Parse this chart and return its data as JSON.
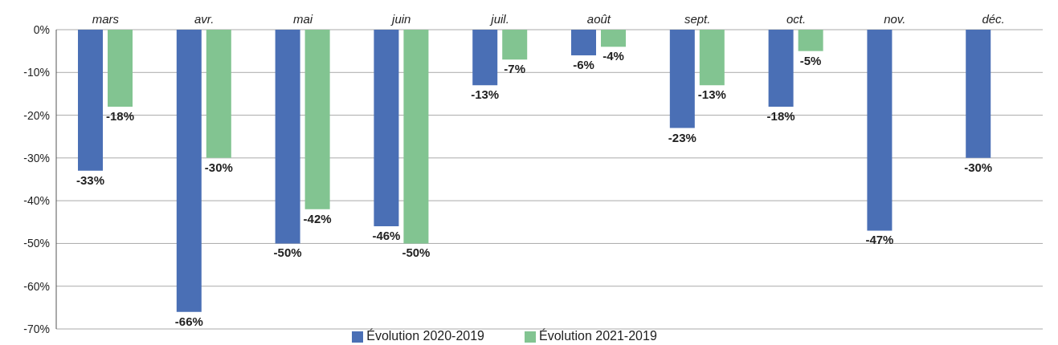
{
  "chart_data": {
    "type": "bar",
    "categories": [
      "mars",
      "avr.",
      "mai",
      "juin",
      "juil.",
      "août",
      "sept.",
      "oct.",
      "nov.",
      "déc."
    ],
    "series": [
      {
        "name": "Évolution 2020-2019",
        "color": "#4a6fb5",
        "values": [
          -33,
          -66,
          -50,
          -46,
          -13,
          -6,
          -23,
          -18,
          -47,
          -30
        ],
        "value_labels": [
          "-33%",
          "-66%",
          "-50%",
          "-46%",
          "-13%",
          "-6%",
          "-23%",
          "-18%",
          "-47%",
          "-30%"
        ]
      },
      {
        "name": "Évolution 2021-2019",
        "color": "#82c491",
        "values": [
          -18,
          -30,
          -42,
          -50,
          -7,
          -4,
          -13,
          -5,
          null,
          null
        ],
        "value_labels": [
          "-18%",
          "-30%",
          "-42%",
          "-50%",
          "-7%",
          "-4%",
          "-13%",
          "-5%",
          null,
          null
        ]
      }
    ],
    "ylim": [
      -70,
      0
    ],
    "yticks": [
      {
        "value": 0,
        "label": "0%"
      },
      {
        "value": -10,
        "label": "-10%"
      },
      {
        "value": -20,
        "label": "-20%"
      },
      {
        "value": -30,
        "label": "-30%"
      },
      {
        "value": -40,
        "label": "-40%"
      },
      {
        "value": -50,
        "label": "-50%"
      },
      {
        "value": -60,
        "label": "-60%"
      },
      {
        "value": -70,
        "label": "-70%"
      }
    ],
    "grid": "y",
    "legend": "bottom"
  }
}
